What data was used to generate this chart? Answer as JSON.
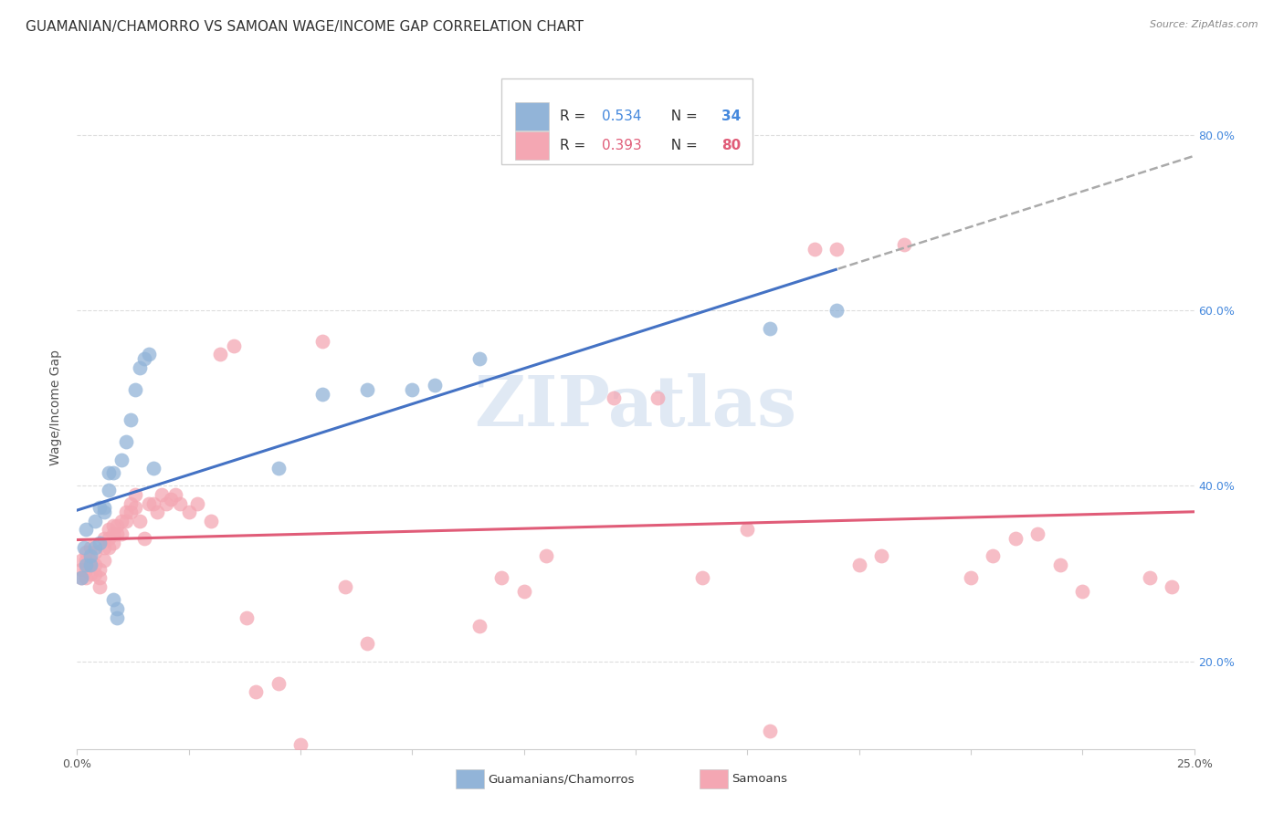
{
  "title": "GUAMANIAN/CHAMORRO VS SAMOAN WAGE/INCOME GAP CORRELATION CHART",
  "source": "Source: ZipAtlas.com",
  "ylabel": "Wage/Income Gap",
  "xlim": [
    0.0,
    0.25
  ],
  "ylim": [
    0.1,
    0.88
  ],
  "xticks": [
    0.0,
    0.025,
    0.05,
    0.075,
    0.1,
    0.125,
    0.15,
    0.175,
    0.2,
    0.225,
    0.25
  ],
  "yticks": [
    0.2,
    0.4,
    0.6,
    0.8
  ],
  "yticklabels_right": [
    "20.0%",
    "40.0%",
    "60.0%",
    "80.0%"
  ],
  "blue_color": "#92B4D8",
  "blue_color_line": "#4472C4",
  "pink_color": "#F4A7B3",
  "pink_color_line": "#E05C78",
  "legend_color1": "#92B4D8",
  "legend_color2": "#F4A7B3",
  "blue_scatter_x": [
    0.001,
    0.0015,
    0.002,
    0.002,
    0.003,
    0.003,
    0.004,
    0.004,
    0.005,
    0.005,
    0.006,
    0.006,
    0.007,
    0.007,
    0.008,
    0.008,
    0.009,
    0.009,
    0.01,
    0.011,
    0.012,
    0.013,
    0.014,
    0.015,
    0.016,
    0.017,
    0.045,
    0.055,
    0.065,
    0.075,
    0.08,
    0.09,
    0.155,
    0.17
  ],
  "blue_scatter_y": [
    0.295,
    0.33,
    0.31,
    0.35,
    0.31,
    0.32,
    0.33,
    0.36,
    0.335,
    0.375,
    0.37,
    0.375,
    0.395,
    0.415,
    0.415,
    0.27,
    0.26,
    0.25,
    0.43,
    0.45,
    0.475,
    0.51,
    0.535,
    0.545,
    0.55,
    0.42,
    0.42,
    0.505,
    0.51,
    0.51,
    0.515,
    0.545,
    0.58,
    0.6
  ],
  "pink_scatter_x": [
    0.001,
    0.001,
    0.001,
    0.002,
    0.002,
    0.002,
    0.002,
    0.003,
    0.003,
    0.003,
    0.003,
    0.004,
    0.004,
    0.004,
    0.005,
    0.005,
    0.005,
    0.006,
    0.006,
    0.006,
    0.007,
    0.007,
    0.007,
    0.008,
    0.008,
    0.008,
    0.009,
    0.009,
    0.01,
    0.01,
    0.011,
    0.011,
    0.012,
    0.012,
    0.013,
    0.013,
    0.014,
    0.015,
    0.016,
    0.017,
    0.018,
    0.019,
    0.02,
    0.021,
    0.022,
    0.023,
    0.025,
    0.027,
    0.03,
    0.032,
    0.035,
    0.038,
    0.04,
    0.045,
    0.05,
    0.055,
    0.06,
    0.065,
    0.09,
    0.095,
    0.1,
    0.105,
    0.12,
    0.13,
    0.14,
    0.15,
    0.155,
    0.165,
    0.17,
    0.175,
    0.18,
    0.185,
    0.2,
    0.205,
    0.21,
    0.215,
    0.22,
    0.225,
    0.24,
    0.245
  ],
  "pink_scatter_y": [
    0.295,
    0.305,
    0.315,
    0.295,
    0.305,
    0.315,
    0.325,
    0.3,
    0.31,
    0.315,
    0.33,
    0.3,
    0.31,
    0.325,
    0.295,
    0.305,
    0.285,
    0.315,
    0.33,
    0.34,
    0.33,
    0.34,
    0.35,
    0.335,
    0.345,
    0.355,
    0.345,
    0.355,
    0.345,
    0.36,
    0.37,
    0.36,
    0.37,
    0.38,
    0.375,
    0.39,
    0.36,
    0.34,
    0.38,
    0.38,
    0.37,
    0.39,
    0.38,
    0.385,
    0.39,
    0.38,
    0.37,
    0.38,
    0.36,
    0.55,
    0.56,
    0.25,
    0.165,
    0.175,
    0.105,
    0.565,
    0.285,
    0.22,
    0.24,
    0.295,
    0.28,
    0.32,
    0.5,
    0.5,
    0.295,
    0.35,
    0.12,
    0.67,
    0.67,
    0.31,
    0.32,
    0.675,
    0.295,
    0.32,
    0.34,
    0.345,
    0.31,
    0.28,
    0.295,
    0.285
  ],
  "background_color": "#FFFFFF",
  "grid_color": "#DDDDDD",
  "watermark": "ZIPatlas",
  "title_fontsize": 11,
  "axis_label_fontsize": 10,
  "tick_fontsize": 9,
  "legend_fontsize": 11
}
